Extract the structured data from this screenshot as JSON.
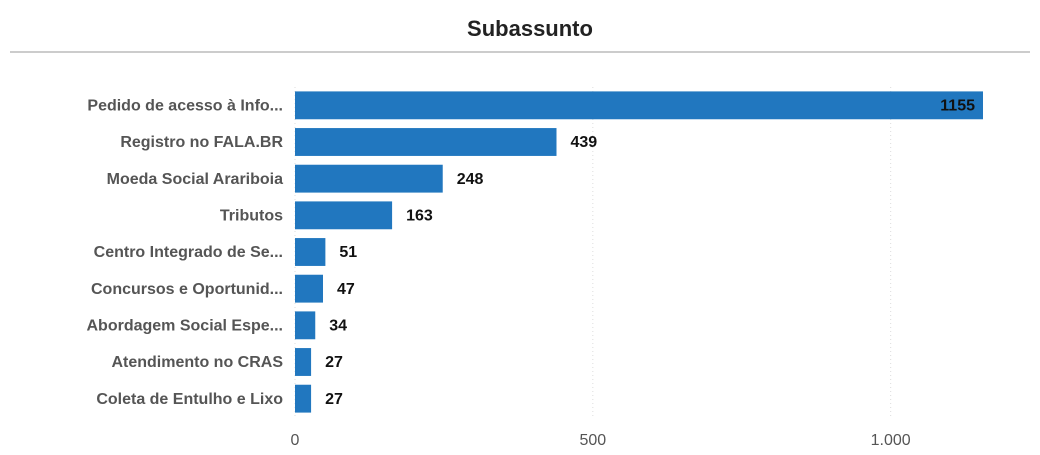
{
  "chart_data": {
    "type": "bar",
    "orientation": "horizontal",
    "title": "Subassunto",
    "categories": [
      "Pedido de acesso à Info...",
      "Registro no FALA.BR",
      "Moeda Social Arariboia",
      "Tributos",
      "Centro Integrado de Se...",
      "Concursos e Oportunid...",
      "Abordagem Social Espe...",
      "Atendimento no CRAS",
      "Coleta de Entulho e Lixo"
    ],
    "values": [
      1155,
      439,
      248,
      163,
      51,
      47,
      34,
      27,
      27
    ],
    "color": "#2177bf",
    "xlim": [
      0,
      1155
    ],
    "xticks": [
      0,
      500,
      {
        "value": 1000,
        "label": "1.000"
      }
    ],
    "grid": true
  }
}
